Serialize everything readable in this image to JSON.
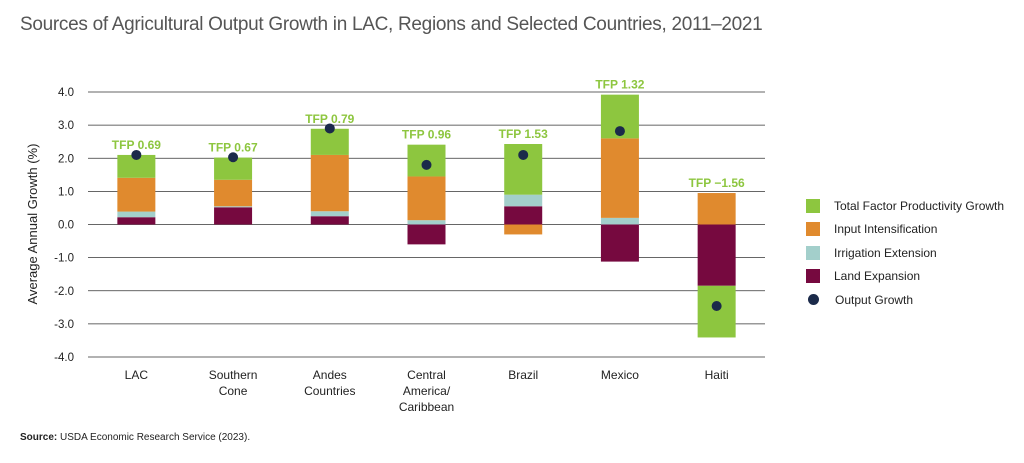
{
  "title": "Sources of Agricultural Output Growth in LAC, Regions and Selected Countries, 2011–2021",
  "source": {
    "label": "Source:",
    "text": " USDA Economic Research Service (2023)."
  },
  "colors": {
    "tfp": "#8DC63F",
    "input": "#E08A2E",
    "irrigation": "#A3CFCB",
    "land": "#76093F",
    "output": "#1B2A4A",
    "tfp_label": "#8DC63F",
    "grid": "#333333"
  },
  "chart_data": {
    "type": "bar",
    "stacked": true,
    "ylabel": "Average Annual Growth (%)",
    "ylim": [
      -4.0,
      4.0
    ],
    "yticks": [
      "4.0",
      "3.0",
      "2.0",
      "1.0",
      "0.0",
      "-1.0",
      "-2.0",
      "-3.0",
      "-4.0"
    ],
    "categories": [
      [
        "LAC"
      ],
      [
        "Southern",
        "Cone"
      ],
      [
        "Andes",
        "Countries"
      ],
      [
        "Central",
        "America/",
        "Caribbean"
      ],
      [
        "Brazil"
      ],
      [
        "Mexico"
      ],
      [
        "Haiti"
      ]
    ],
    "series": [
      {
        "name": "Land Expansion",
        "key": "land",
        "values": [
          0.22,
          0.52,
          0.25,
          -0.6,
          0.55,
          -1.12,
          -1.85
        ]
      },
      {
        "name": "Irrigation Extension",
        "key": "irrigation",
        "values": [
          0.17,
          0.03,
          0.15,
          0.13,
          0.35,
          0.2,
          0.0
        ]
      },
      {
        "name": "Input Intensification",
        "key": "input",
        "values": [
          1.02,
          0.8,
          1.7,
          1.32,
          -0.3,
          2.4,
          0.95
        ]
      },
      {
        "name": "Total Factor Productivity Growth",
        "key": "tfp",
        "values": [
          0.69,
          0.67,
          0.79,
          0.96,
          1.53,
          1.32,
          -1.56
        ]
      }
    ],
    "output_growth": [
      2.1,
      2.03,
      2.9,
      1.8,
      2.1,
      2.82,
      -2.46
    ],
    "tfp_labels": [
      "TFP 0.69",
      "TFP 0.67",
      "TFP 0.79",
      "TFP 0.96",
      "TFP 1.53",
      "TFP 1.32",
      "TFP −1.56"
    ],
    "legend": [
      {
        "label": "Total Factor Productivity Growth",
        "key": "tfp",
        "kind": "bar"
      },
      {
        "label": "Input Intensification",
        "key": "input",
        "kind": "bar"
      },
      {
        "label": "Irrigation Extension",
        "key": "irrigation",
        "kind": "bar"
      },
      {
        "label": "Land Expansion",
        "key": "land",
        "kind": "bar"
      },
      {
        "label": "Output Growth",
        "key": "output",
        "kind": "dot"
      }
    ],
    "legend_position": "right",
    "grid": true
  }
}
